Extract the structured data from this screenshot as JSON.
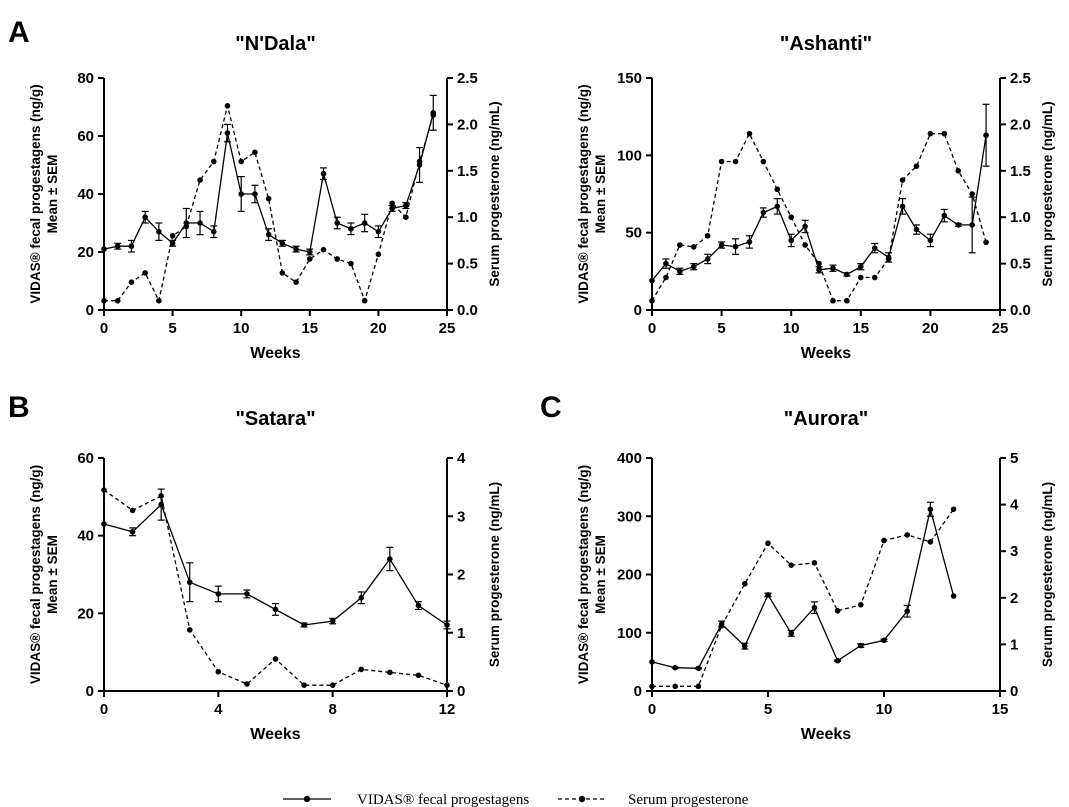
{
  "legend": {
    "fecal_label": "VIDAS® fecal progestagens",
    "serum_label": "Serum progesterone"
  },
  "chart_data": [
    {
      "panel": "A",
      "type": "line",
      "title": "\"N'Dala\"",
      "xlabel": "Weeks",
      "ylabel_left": [
        "VIDAS® fecal progestagens (ng/g)",
        "Mean ± SEM"
      ],
      "ylabel_right": "Serum progesterone (ng/mL)",
      "xlim": [
        0,
        25
      ],
      "xticks": [
        0,
        5,
        10,
        15,
        20,
        25
      ],
      "ylim_left": [
        0,
        80
      ],
      "yticks_left": [
        0,
        20,
        40,
        60,
        80
      ],
      "ylim_right": [
        0,
        2.5
      ],
      "yticks_right": [
        "0.0",
        "0.5",
        "1.0",
        "1.5",
        "2.0",
        "2.5"
      ],
      "series": [
        {
          "name": "VIDAS® fecal progestagens",
          "axis": "left",
          "x": [
            0,
            1,
            2,
            3,
            4,
            5,
            6,
            7,
            8,
            9,
            10,
            11,
            12,
            13,
            14,
            15,
            16,
            17,
            18,
            19,
            20,
            21,
            22,
            23,
            24
          ],
          "y": [
            21,
            22,
            22,
            32,
            27,
            23,
            30,
            30,
            27,
            61,
            40,
            40,
            26,
            23,
            21,
            20,
            47,
            30,
            28,
            30,
            27,
            35,
            36,
            50,
            68
          ],
          "err": [
            0,
            1,
            2,
            2,
            3,
            1,
            5,
            4,
            2,
            3,
            6,
            3,
            2,
            1,
            1,
            1,
            2,
            2,
            2,
            3,
            2,
            1,
            1,
            6,
            6
          ]
        },
        {
          "name": "Serum progesterone",
          "axis": "right",
          "x": [
            0,
            1,
            2,
            3,
            4,
            5,
            6,
            7,
            8,
            9,
            10,
            11,
            12,
            13,
            14,
            15,
            16,
            17,
            18,
            19,
            20,
            21,
            22,
            23,
            24
          ],
          "y": [
            0.1,
            0.1,
            0.3,
            0.4,
            0.1,
            0.8,
            0.9,
            1.4,
            1.6,
            2.2,
            1.6,
            1.7,
            1.2,
            0.4,
            0.3,
            0.55,
            0.65,
            0.55,
            0.5,
            0.1,
            0.6,
            1.15,
            1.0,
            1.6,
            2.1
          ]
        }
      ]
    },
    {
      "panel": "",
      "type": "line",
      "title": "\"Ashanti\"",
      "xlabel": "Weeks",
      "ylabel_left": [
        "VIDAS® fecal progestagens (ng/g)",
        "Mean ± SEM"
      ],
      "ylabel_right": "Serum progesterone (ng/mL)",
      "xlim": [
        0,
        25
      ],
      "xticks": [
        0,
        5,
        10,
        15,
        20,
        25
      ],
      "ylim_left": [
        0,
        150
      ],
      "yticks_left": [
        0,
        50,
        100,
        150
      ],
      "ylim_right": [
        0,
        2.5
      ],
      "yticks_right": [
        "0.0",
        "0.5",
        "1.0",
        "1.5",
        "2.0",
        "2.5"
      ],
      "series": [
        {
          "name": "VIDAS® fecal progestagens",
          "axis": "left",
          "x": [
            0,
            1,
            2,
            3,
            4,
            5,
            6,
            7,
            8,
            9,
            10,
            11,
            12,
            13,
            14,
            15,
            16,
            17,
            18,
            19,
            20,
            21,
            22,
            23,
            24
          ],
          "y": [
            19,
            30,
            25,
            28,
            33,
            42,
            41,
            44,
            63,
            67,
            45,
            54,
            26,
            27,
            23,
            28,
            40,
            34,
            67,
            52,
            45,
            61,
            55,
            55,
            113
          ],
          "err": [
            0,
            3,
            2,
            2,
            3,
            2,
            5,
            4,
            3,
            5,
            4,
            4,
            2,
            2,
            1,
            2,
            3,
            3,
            5,
            3,
            4,
            4,
            1,
            18,
            20
          ]
        },
        {
          "name": "Serum progesterone",
          "axis": "right",
          "x": [
            0,
            1,
            2,
            3,
            4,
            5,
            6,
            7,
            8,
            9,
            10,
            11,
            12,
            13,
            14,
            15,
            16,
            17,
            18,
            19,
            20,
            21,
            22,
            23,
            24
          ],
          "y": [
            0.1,
            0.35,
            0.7,
            0.68,
            0.8,
            1.6,
            1.6,
            1.9,
            1.6,
            1.3,
            1.0,
            0.7,
            0.5,
            0.1,
            0.1,
            0.35,
            0.35,
            0.55,
            1.4,
            1.55,
            1.9,
            1.9,
            1.5,
            1.25,
            0.73
          ]
        }
      ]
    },
    {
      "panel": "B",
      "type": "line",
      "title": "\"Satara\"",
      "xlabel": "Weeks",
      "ylabel_left": [
        "VIDAS® fecal progestagens (ng/g)",
        "Mean ± SEM"
      ],
      "ylabel_right": "Serum progesterone (ng/mL)",
      "xlim": [
        0,
        12
      ],
      "xticks": [
        0,
        4,
        8,
        12
      ],
      "ylim_left": [
        0,
        60
      ],
      "yticks_left": [
        0,
        20,
        40,
        60
      ],
      "ylim_right": [
        0,
        4
      ],
      "yticks_right": [
        "0",
        "1",
        "2",
        "3",
        "4"
      ],
      "series": [
        {
          "name": "VIDAS® fecal progestagens",
          "axis": "left",
          "x": [
            0,
            1,
            2,
            3,
            4,
            5,
            6,
            7,
            8,
            9,
            10,
            11,
            12
          ],
          "y": [
            43,
            41,
            48,
            28,
            25,
            25,
            21,
            17,
            18,
            24,
            34,
            22,
            17
          ],
          "err": [
            0,
            1,
            4,
            5,
            2,
            1,
            1.5,
            0.5,
            0.7,
            1.5,
            3,
            1,
            1
          ]
        },
        {
          "name": "Serum progesterone",
          "axis": "right",
          "x": [
            0,
            1,
            2,
            3,
            4,
            5,
            6,
            7,
            8,
            9,
            10,
            11,
            12
          ],
          "y": [
            3.45,
            3.1,
            3.35,
            1.05,
            0.33,
            0.12,
            0.55,
            0.1,
            0.1,
            0.37,
            0.32,
            0.27,
            0.1
          ]
        }
      ]
    },
    {
      "panel": "C",
      "type": "line",
      "title": "\"Aurora\"",
      "xlabel": "Weeks",
      "ylabel_left": [
        "VIDAS® fecal progestagens (ng/g)",
        "Mean ± SEM"
      ],
      "ylabel_right": "Serum progesterone (ng/mL)",
      "xlim": [
        0,
        15
      ],
      "xticks": [
        0,
        5,
        10,
        15
      ],
      "ylim_left": [
        0,
        400
      ],
      "yticks_left": [
        0,
        100,
        200,
        300,
        400
      ],
      "ylim_right": [
        0,
        5
      ],
      "yticks_right": [
        "0",
        "1",
        "2",
        "3",
        "4",
        "5"
      ],
      "series": [
        {
          "name": "VIDAS® fecal progestagens",
          "axis": "left",
          "x": [
            0,
            1,
            2,
            3,
            4,
            5,
            6,
            7,
            8,
            9,
            10,
            11,
            12,
            13
          ],
          "y": [
            50,
            40,
            39,
            115,
            77,
            165,
            99,
            143,
            52,
            78,
            87,
            137,
            312,
            163
          ],
          "err": [
            0,
            1,
            1,
            5,
            5,
            3,
            5,
            10,
            1,
            3,
            2,
            10,
            12,
            0
          ]
        },
        {
          "name": "Serum progesterone",
          "axis": "right",
          "x": [
            0,
            1,
            2,
            3,
            4,
            5,
            6,
            7,
            8,
            9,
            10,
            11,
            12,
            13
          ],
          "y": [
            0.1,
            0.1,
            0.1,
            1.4,
            2.3,
            3.17,
            2.7,
            2.75,
            1.72,
            1.85,
            3.23,
            3.35,
            3.2,
            3.9
          ]
        }
      ]
    }
  ]
}
